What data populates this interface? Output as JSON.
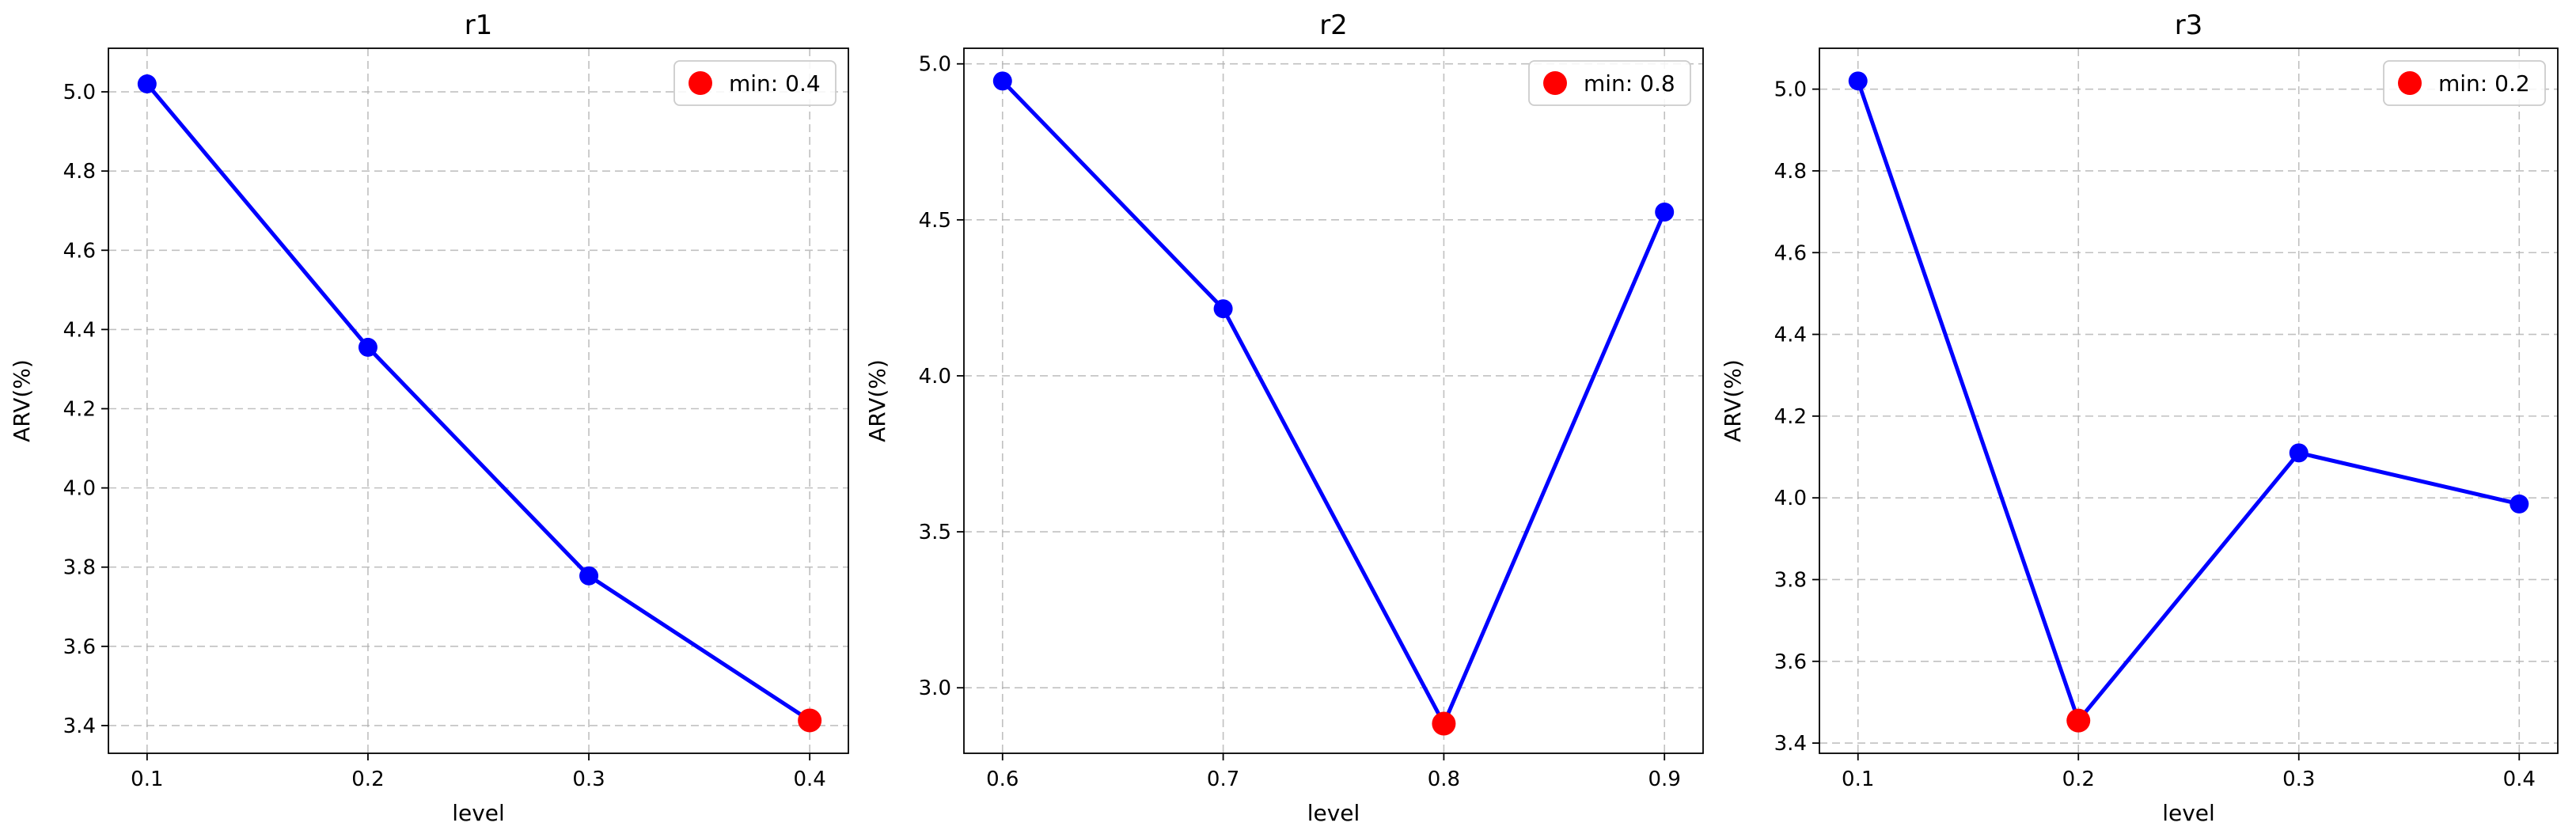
{
  "chart_data": [
    {
      "type": "line",
      "title": "r1",
      "xlabel": "level",
      "ylabel": "ARV(%)",
      "x": [
        0.1,
        0.2,
        0.3,
        0.4
      ],
      "series": [
        {
          "values": [
            5.02,
            4.355,
            3.778,
            3.413
          ]
        }
      ],
      "highlight": {
        "x": 0.4,
        "y": 3.413,
        "label": "min: 0.4"
      },
      "xticks": [
        "0.1",
        "0.2",
        "0.3",
        "0.4"
      ],
      "yticks": [
        "3.4",
        "3.6",
        "3.8",
        "4.0",
        "4.2",
        "4.4",
        "4.6",
        "4.8",
        "5.0"
      ],
      "xlim": [
        0.0825,
        0.4175
      ],
      "ylim": [
        3.33,
        5.11
      ],
      "grid": true,
      "legend_position": "top-right",
      "colors": {
        "line": "#0000ff",
        "highlight": "#ff0000"
      }
    },
    {
      "type": "line",
      "title": "r2",
      "xlabel": "level",
      "ylabel": "ARV(%)",
      "x": [
        0.6,
        0.7,
        0.8,
        0.9
      ],
      "series": [
        {
          "values": [
            4.945,
            4.215,
            2.885,
            4.525
          ]
        }
      ],
      "highlight": {
        "x": 0.8,
        "y": 2.885,
        "label": "min: 0.8"
      },
      "xticks": [
        "0.6",
        "0.7",
        "0.8",
        "0.9"
      ],
      "yticks": [
        "3.0",
        "3.5",
        "4.0",
        "4.5",
        "5.0"
      ],
      "xlim": [
        0.5825,
        0.9175
      ],
      "ylim": [
        2.79,
        5.05
      ],
      "grid": true,
      "legend_position": "top-right",
      "colors": {
        "line": "#0000ff",
        "highlight": "#ff0000"
      }
    },
    {
      "type": "line",
      "title": "r3",
      "xlabel": "level",
      "ylabel": "ARV(%)",
      "x": [
        0.1,
        0.2,
        0.3,
        0.4
      ],
      "series": [
        {
          "values": [
            5.02,
            3.455,
            4.11,
            3.985
          ]
        }
      ],
      "highlight": {
        "x": 0.2,
        "y": 3.455,
        "label": "min: 0.2"
      },
      "xticks": [
        "0.1",
        "0.2",
        "0.3",
        "0.4"
      ],
      "yticks": [
        "3.4",
        "3.6",
        "3.8",
        "4.0",
        "4.2",
        "4.4",
        "4.6",
        "4.8",
        "5.0"
      ],
      "xlim": [
        0.0825,
        0.4175
      ],
      "ylim": [
        3.375,
        5.1
      ],
      "grid": true,
      "legend_position": "top-right",
      "colors": {
        "line": "#0000ff",
        "highlight": "#ff0000"
      }
    }
  ]
}
